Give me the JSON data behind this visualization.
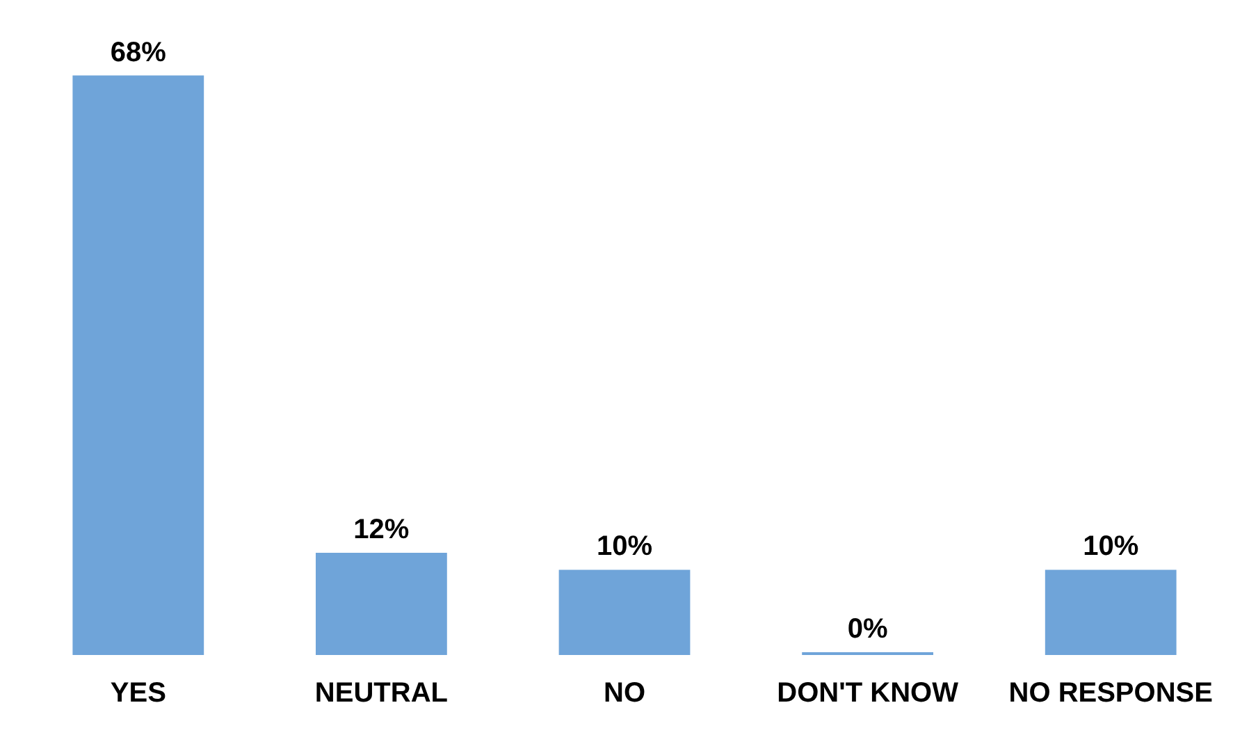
{
  "chart_data": {
    "type": "bar",
    "categories": [
      "YES",
      "NEUTRAL",
      "NO",
      "DON'T KNOW",
      "NO RESPONSE"
    ],
    "values": [
      68,
      12,
      10,
      0,
      10
    ],
    "value_labels": [
      "68%",
      "12%",
      "10%",
      "0%",
      "10%"
    ],
    "color": "#6fa4d9",
    "tick_labels": "x",
    "grid": false,
    "legend": false
  }
}
